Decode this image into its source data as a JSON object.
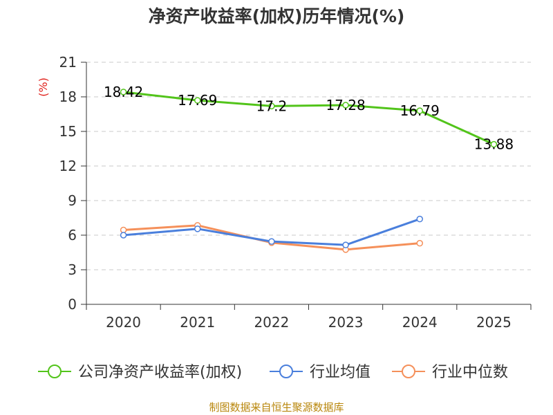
{
  "chart_data": {
    "type": "line",
    "title": "净资产收益率(加权)历年情况(%)",
    "ylabel": "(%)",
    "xlabel": "",
    "categories": [
      "2020",
      "2021",
      "2022",
      "2023",
      "2024",
      "2025"
    ],
    "ylim": [
      0,
      21
    ],
    "yticks": [
      0,
      3,
      6,
      9,
      12,
      15,
      18,
      21
    ],
    "grid": true,
    "legend_position": "bottom",
    "series": [
      {
        "name": "公司净资产收益率(加权)",
        "color": "#52c41a",
        "values": [
          18.42,
          17.69,
          17.2,
          17.28,
          16.79,
          13.88
        ],
        "labels": true
      },
      {
        "name": "行业均值",
        "color": "#4a7fdc",
        "values": [
          6.0,
          6.55,
          5.45,
          5.15,
          7.4,
          null
        ],
        "labels": false
      },
      {
        "name": "行业中位数",
        "color": "#f5905a",
        "values": [
          6.45,
          6.85,
          5.35,
          4.75,
          5.3,
          null
        ],
        "labels": false
      }
    ]
  },
  "source": "制图数据来自恒生聚源数据库"
}
